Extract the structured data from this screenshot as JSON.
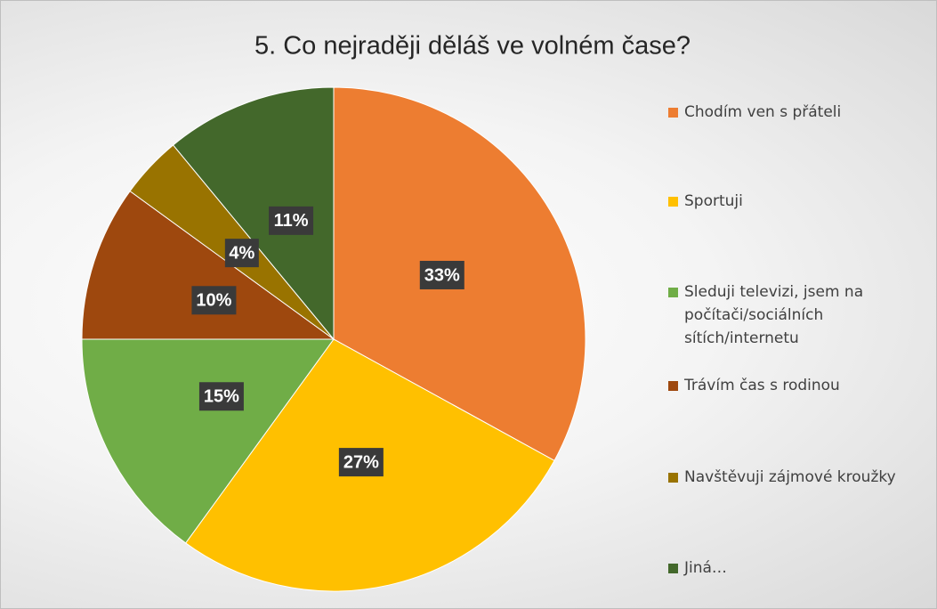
{
  "chart_data": {
    "type": "pie",
    "title": "5. Co nejraději děláš ve volném čase?",
    "categories": [
      "Chodím ven s přáteli",
      "Sportuji",
      "Sleduji televizi, jsem na počítači/sociálních sítích/internetu",
      "Trávím čas s rodinou",
      "Navštěvuji zájmové kroužky",
      "Jiná…"
    ],
    "values": [
      33,
      27,
      15,
      10,
      4,
      11
    ],
    "value_labels": [
      "33%",
      "27%",
      "15%",
      "10%",
      "4%",
      "11%"
    ],
    "colors": [
      "#ed7d31",
      "#ffc000",
      "#70ad47",
      "#9e480e",
      "#997300",
      "#43682b"
    ],
    "legend": "right"
  }
}
